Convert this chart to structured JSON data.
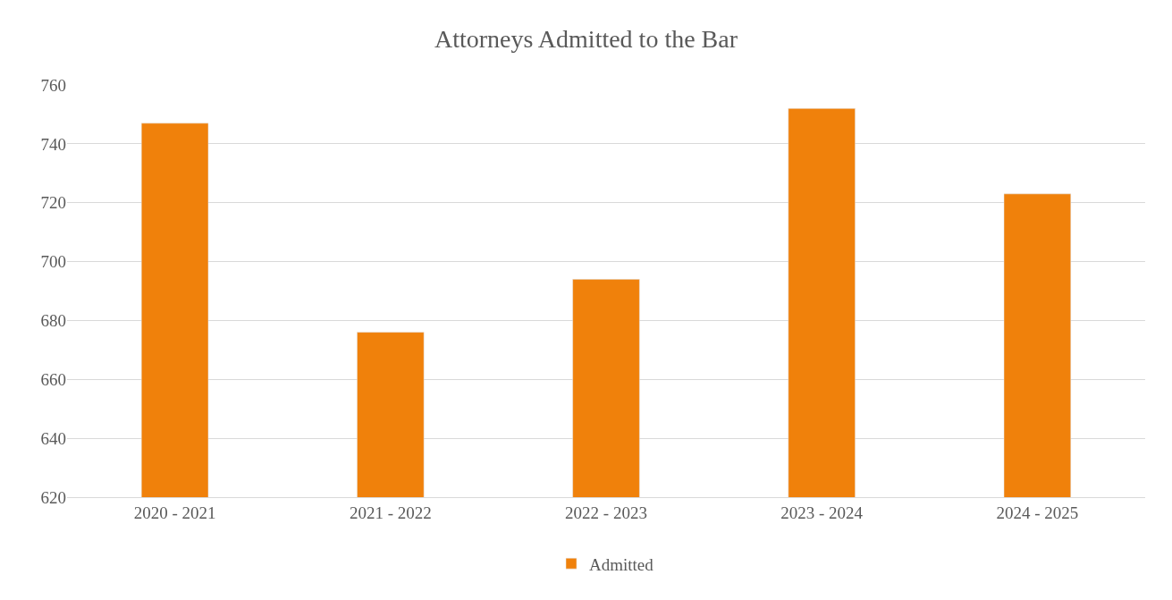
{
  "chart_data": {
    "type": "bar",
    "title": "Attorneys Admitted to the Bar",
    "categories": [
      "2020 - 2021",
      "2021 - 2022",
      "2022 - 2023",
      "2023 - 2024",
      "2024 - 2025"
    ],
    "series": [
      {
        "name": "Admitted",
        "color": "#f0810b",
        "values": [
          747,
          676,
          694,
          752,
          723
        ]
      }
    ],
    "ylim": [
      620,
      760
    ],
    "yticks": [
      620,
      640,
      660,
      680,
      700,
      720,
      740,
      760
    ],
    "grid": "y",
    "legend": "bottom"
  }
}
